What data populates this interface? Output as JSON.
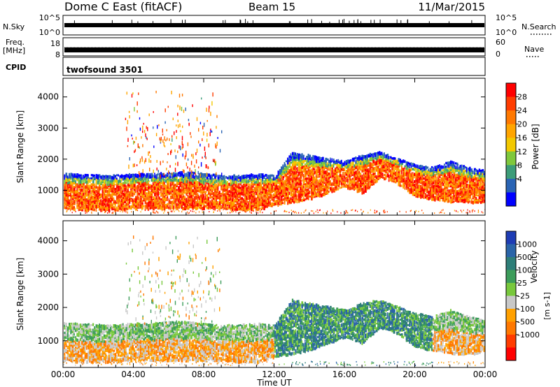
{
  "header": {
    "station": "Dome C East (fitACF)",
    "beam": "Beam 15",
    "date": "11/Mar/2015"
  },
  "strips": {
    "nsky_label": "N.Sky",
    "nsky_ticks": [
      "10^5",
      "10^0"
    ],
    "nsearch_label": "N.Search",
    "nsearch_ticks": [
      "10^5",
      "10^0"
    ],
    "freq_label": "Freq.",
    "freq_unit": "[MHz]",
    "freq_ticks": [
      "18",
      "8"
    ],
    "nave_label": "Nave",
    "nave_ticks": [
      "60",
      "0"
    ],
    "cpid_label": "CPID",
    "cpid_value": "twofsound 3501"
  },
  "chart_data": [
    {
      "type": "heatmap",
      "name": "power",
      "ylabel": "Slant Range [km]",
      "xlabel": "Time UT",
      "x_ticks": [
        "00:00",
        "04:00",
        "08:00",
        "12:00",
        "16:00",
        "20:00",
        "00:00"
      ],
      "x_range_hours": [
        0,
        24
      ],
      "y_ticks": [
        1000,
        2000,
        3000,
        4000
      ],
      "ylim": [
        200,
        4600
      ],
      "colorbar_label": "Power [dB]",
      "colorbar_ticks": [
        "28",
        "24",
        "20",
        "16",
        "12",
        "8",
        "4"
      ],
      "colors": [
        "#ff0000",
        "#ff3c00",
        "#ff7800",
        "#ffa500",
        "#f2c800",
        "#7fc83c",
        "#3c9c78",
        "#2a64b4",
        "#0000ff"
      ],
      "band_profile_km": {
        "hours": [
          0,
          1,
          2,
          3,
          4,
          5,
          6,
          7,
          8,
          9,
          10,
          11,
          12,
          13,
          14,
          15,
          16,
          17,
          18,
          19,
          20,
          21,
          22,
          23,
          24
        ],
        "upper": [
          1500,
          1500,
          1450,
          1450,
          1500,
          1500,
          1550,
          1550,
          1500,
          1450,
          1450,
          1500,
          1450,
          2200,
          2100,
          2000,
          1900,
          2100,
          2200,
          2000,
          1800,
          1700,
          1900,
          1700,
          1600
        ],
        "lower": [
          400,
          350,
          350,
          350,
          400,
          400,
          400,
          400,
          400,
          400,
          350,
          350,
          500,
          600,
          700,
          900,
          1100,
          900,
          1400,
          1200,
          800,
          700,
          600,
          600,
          600
        ]
      }
    },
    {
      "type": "heatmap",
      "name": "velocity",
      "ylabel": "Slant Range [km]",
      "xlabel": "Time UT",
      "x_ticks": [
        "00:00",
        "04:00",
        "08:00",
        "12:00",
        "16:00",
        "20:00",
        "00:00"
      ],
      "x_range_hours": [
        0,
        24
      ],
      "y_ticks": [
        1000,
        2000,
        3000,
        4000
      ],
      "ylim": [
        200,
        4600
      ],
      "colorbar_label": "Velocity",
      "colorbar_unit": "[m s-1]",
      "colorbar_ticks": [
        "1000",
        "500",
        "100",
        "25",
        "-25",
        "-100",
        "-500",
        "-1000"
      ],
      "colors": [
        "#1e3cb4",
        "#2a64a8",
        "#2e7e78",
        "#3c9c5a",
        "#78c83c",
        "#c8c8c8",
        "#ffa000",
        "#ff7800",
        "#ff3c00",
        "#ff0000"
      ]
    }
  ]
}
